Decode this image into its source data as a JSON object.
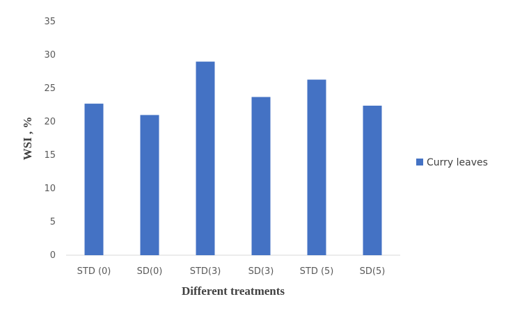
{
  "chart_data": {
    "type": "bar",
    "title": "",
    "categories": [
      "STD (0)",
      "SD(0)",
      "STD(3)",
      "SD(3)",
      "STD (5)",
      "SD(5)"
    ],
    "series": [
      {
        "name": "Curry leaves",
        "values": [
          22.7,
          21.0,
          29.0,
          23.7,
          26.3,
          22.4
        ],
        "color": "#4472c4"
      }
    ],
    "xlabel": "Different treatments",
    "ylabel": "WSI , %",
    "ylim": [
      0,
      35
    ],
    "yticks": [
      "0",
      "5",
      "10",
      "15",
      "20",
      "25",
      "30",
      "35"
    ],
    "grid": false,
    "legend_position": "right"
  }
}
